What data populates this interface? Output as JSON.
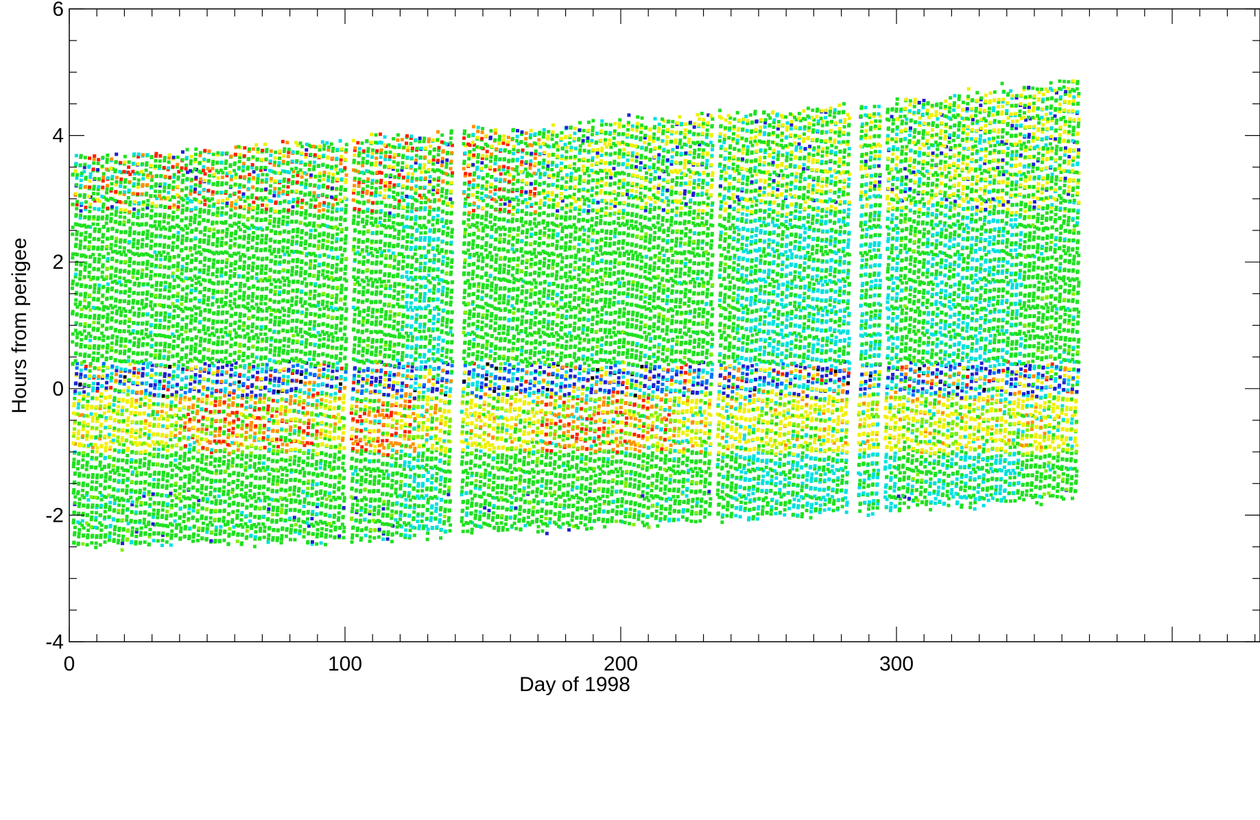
{
  "chart_data": {
    "type": "scatter",
    "title": "",
    "xlabel": "Day of 1998",
    "ylabel": "Hours from perigee",
    "xlim": [
      0,
      365
    ],
    "ylim": [
      -4,
      6
    ],
    "x_ticks": [
      0,
      100,
      200,
      300
    ],
    "x_tick_labels": [
      "0",
      "100",
      "200",
      "300"
    ],
    "y_ticks": [
      -4,
      -2,
      0,
      2,
      4,
      6
    ],
    "y_tick_labels": [
      "-4",
      "-2",
      "0",
      "2",
      "4",
      "6"
    ],
    "grid": false,
    "legend": "none",
    "color_scale": [
      "#000000",
      "#2020d0",
      "#0070ff",
      "#00e0e0",
      "#20e020",
      "#80f000",
      "#f0f000",
      "#ff9000",
      "#ff2000"
    ],
    "envelope": {
      "upper_hours": [
        [
          0,
          3.7
        ],
        [
          100,
          4.0
        ],
        [
          200,
          4.3
        ],
        [
          300,
          4.6
        ],
        [
          365,
          4.95
        ]
      ],
      "lower_hours": [
        [
          0,
          -2.55
        ],
        [
          100,
          -2.45
        ],
        [
          200,
          -2.2
        ],
        [
          300,
          -1.95
        ],
        [
          365,
          -1.75
        ]
      ]
    },
    "perigee_band_hours": [
      -0.1,
      0.4
    ],
    "high_value_band_hours": [
      -1.0,
      -0.1
    ],
    "data_gaps_days": [
      101,
      140,
      234,
      284,
      294
    ]
  }
}
